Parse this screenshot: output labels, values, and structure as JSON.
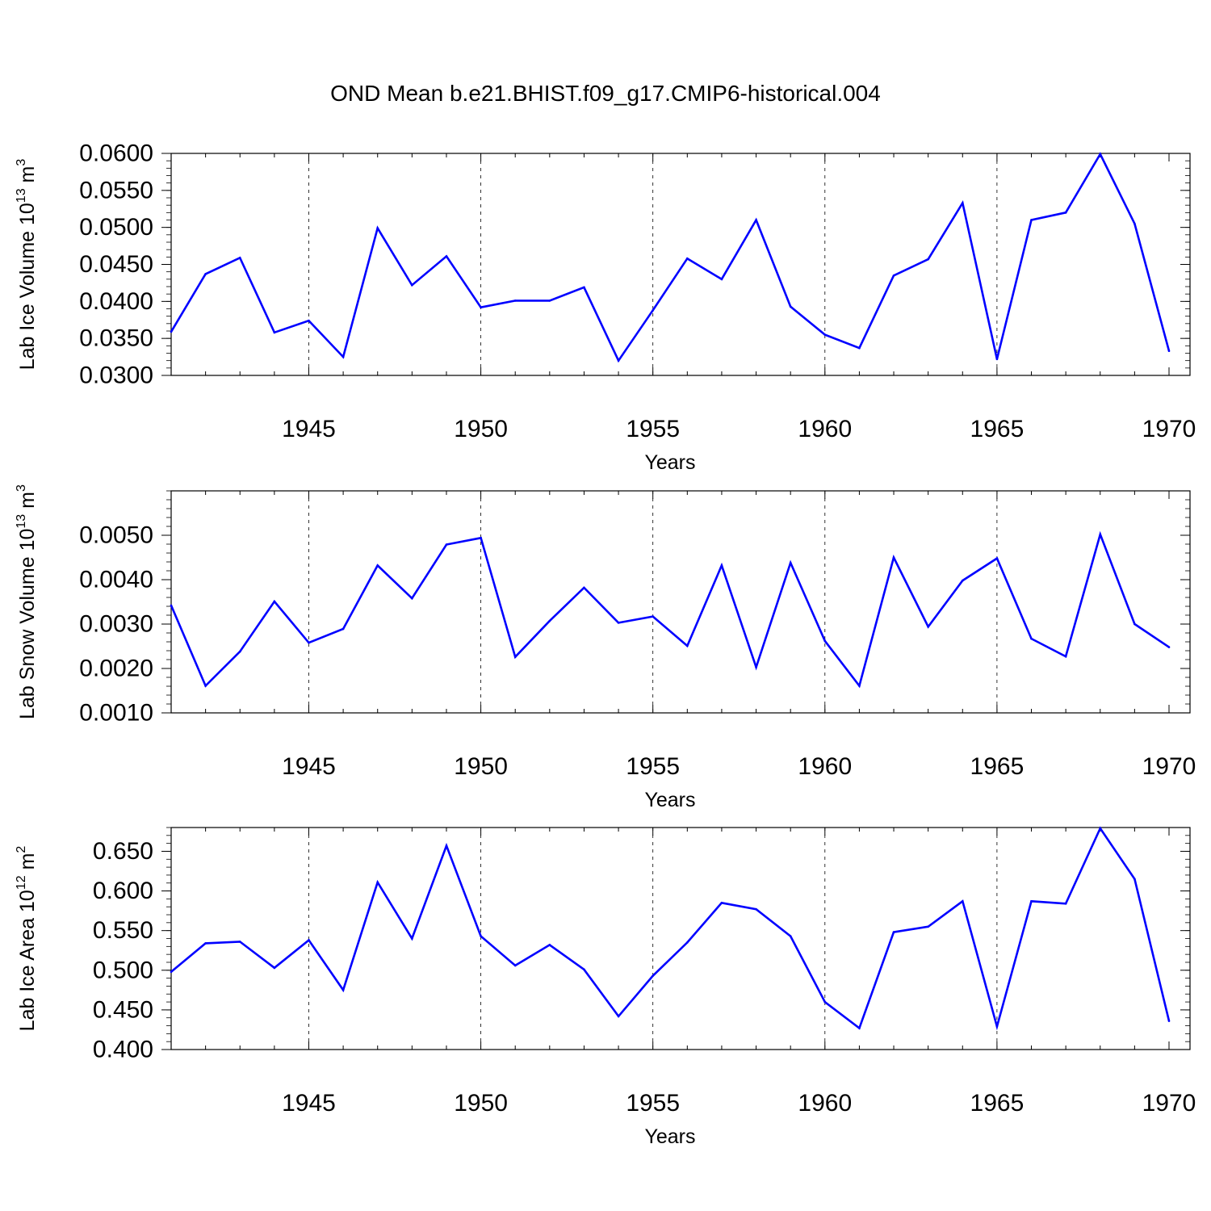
{
  "title": "OND Mean b.e21.BHIST.f09_g17.CMIP6-historical.004",
  "line_color": "#0000ff",
  "chart_data": [
    {
      "type": "line",
      "ylabel_main": "Lab Ice Volume 10",
      "ylabel_exp": "13",
      "ylabel_unit": "m",
      "ylabel_unit_exp": "3",
      "xlabel": "Years",
      "xlim": [
        1941,
        1970
      ],
      "ylim": [
        0.03,
        0.06
      ],
      "ytick_values": [
        0.03,
        0.035,
        0.04,
        0.045,
        0.05,
        0.055,
        0.06
      ],
      "ytick_labels": [
        "0.0300",
        "0.0350",
        "0.0400",
        "0.0450",
        "0.0500",
        "0.0550",
        "0.0600"
      ],
      "yminor_step": 0.001,
      "xtick_values": [
        1945,
        1950,
        1955,
        1960,
        1965,
        1970
      ],
      "xtick_labels": [
        "1945",
        "1950",
        "1955",
        "1960",
        "1965",
        "1970"
      ],
      "x": [
        1941,
        1942,
        1943,
        1944,
        1945,
        1946,
        1947,
        1948,
        1949,
        1950,
        1951,
        1952,
        1953,
        1954,
        1955,
        1956,
        1957,
        1958,
        1959,
        1960,
        1961,
        1962,
        1963,
        1964,
        1965,
        1966,
        1967,
        1968,
        1969,
        1970
      ],
      "values": [
        0.0359,
        0.0437,
        0.0459,
        0.0358,
        0.0374,
        0.0325,
        0.0499,
        0.0422,
        0.0461,
        0.0392,
        0.0401,
        0.0401,
        0.0419,
        0.032,
        0.0388,
        0.0458,
        0.043,
        0.051,
        0.0393,
        0.0355,
        0.0337,
        0.0435,
        0.0457,
        0.0533,
        0.0322,
        0.051,
        0.052,
        0.0599,
        0.0505,
        0.0333
      ]
    },
    {
      "type": "line",
      "ylabel_main": "Lab Snow Volume 10",
      "ylabel_exp": "13",
      "ylabel_unit": "m",
      "ylabel_unit_exp": "3",
      "xlabel": "Years",
      "xlim": [
        1941,
        1970
      ],
      "ylim": [
        0.001,
        0.006
      ],
      "ytick_values": [
        0.001,
        0.002,
        0.003,
        0.004,
        0.005
      ],
      "ytick_labels": [
        "0.0010",
        "0.0020",
        "0.0030",
        "0.0040",
        "0.0050"
      ],
      "yminor_step": 0.0002,
      "xtick_values": [
        1945,
        1950,
        1955,
        1960,
        1965,
        1970
      ],
      "xtick_labels": [
        "1945",
        "1950",
        "1955",
        "1960",
        "1965",
        "1970"
      ],
      "x": [
        1941,
        1942,
        1943,
        1944,
        1945,
        1946,
        1947,
        1948,
        1949,
        1950,
        1951,
        1952,
        1953,
        1954,
        1955,
        1956,
        1957,
        1958,
        1959,
        1960,
        1961,
        1962,
        1963,
        1964,
        1965,
        1966,
        1967,
        1968,
        1969,
        1970
      ],
      "values": [
        0.00342,
        0.00161,
        0.00238,
        0.00351,
        0.00258,
        0.00289,
        0.00432,
        0.00358,
        0.00479,
        0.00494,
        0.00226,
        0.00307,
        0.00382,
        0.00303,
        0.00317,
        0.00251,
        0.00432,
        0.00203,
        0.00438,
        0.00262,
        0.00161,
        0.0045,
        0.00294,
        0.00398,
        0.00448,
        0.00267,
        0.00227,
        0.00502,
        0.003,
        0.00248
      ]
    },
    {
      "type": "line",
      "ylabel_main": "Lab Ice Area 10",
      "ylabel_exp": "12",
      "ylabel_unit": "m",
      "ylabel_unit_exp": "2",
      "xlabel": "Years",
      "xlim": [
        1941,
        1970
      ],
      "ylim": [
        0.4,
        0.68
      ],
      "ytick_values": [
        0.4,
        0.45,
        0.5,
        0.55,
        0.6,
        0.65
      ],
      "ytick_labels": [
        "0.400",
        "0.450",
        "0.500",
        "0.550",
        "0.600",
        "0.650"
      ],
      "yminor_step": 0.01,
      "xtick_values": [
        1945,
        1950,
        1955,
        1960,
        1965,
        1970
      ],
      "xtick_labels": [
        "1945",
        "1950",
        "1955",
        "1960",
        "1965",
        "1970"
      ],
      "x": [
        1941,
        1942,
        1943,
        1944,
        1945,
        1946,
        1947,
        1948,
        1949,
        1950,
        1951,
        1952,
        1953,
        1954,
        1955,
        1956,
        1957,
        1958,
        1959,
        1960,
        1961,
        1962,
        1963,
        1964,
        1965,
        1966,
        1967,
        1968,
        1969,
        1970
      ],
      "values": [
        0.498,
        0.534,
        0.536,
        0.503,
        0.538,
        0.475,
        0.611,
        0.54,
        0.657,
        0.543,
        0.506,
        0.532,
        0.501,
        0.442,
        0.493,
        0.535,
        0.585,
        0.577,
        0.543,
        0.46,
        0.427,
        0.548,
        0.555,
        0.587,
        0.429,
        0.587,
        0.584,
        0.679,
        0.615,
        0.436
      ]
    }
  ]
}
